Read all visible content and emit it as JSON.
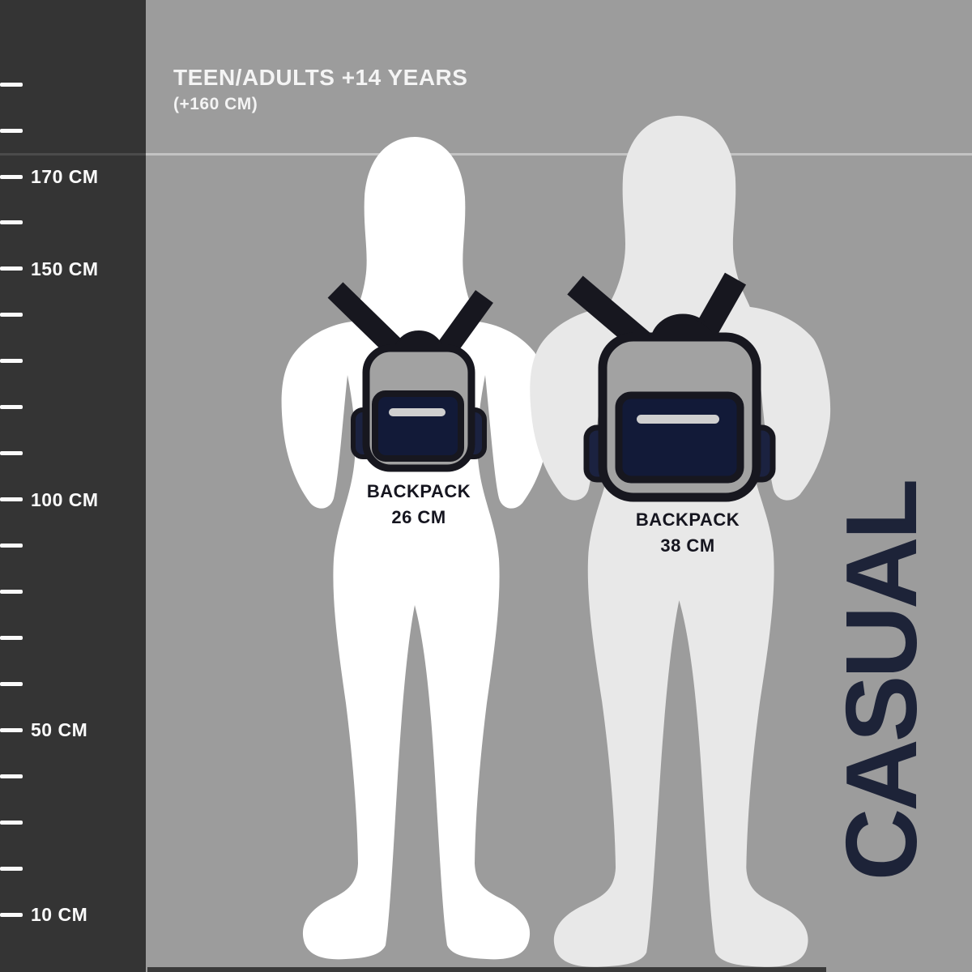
{
  "header": {
    "title": "TEEN/ADULTS +14 YEARS",
    "subtitle": "(+160 CM)"
  },
  "ruler": {
    "unit": "CM",
    "ticks": [
      {
        "cm": 190
      },
      {
        "cm": 180
      },
      {
        "cm": 170,
        "label": "170 CM"
      },
      {
        "cm": 160
      },
      {
        "cm": 150,
        "label": "150 CM"
      },
      {
        "cm": 140
      },
      {
        "cm": 130
      },
      {
        "cm": 120
      },
      {
        "cm": 110
      },
      {
        "cm": 100,
        "label": "100 CM"
      },
      {
        "cm": 90
      },
      {
        "cm": 80
      },
      {
        "cm": 70
      },
      {
        "cm": 60
      },
      {
        "cm": 50,
        "label": "50 CM"
      },
      {
        "cm": 40
      },
      {
        "cm": 30
      },
      {
        "cm": 20
      },
      {
        "cm": 10,
        "label": "10 CM"
      }
    ]
  },
  "backpacks": [
    {
      "label_line1": "BACKPACK",
      "label_line2": "26 CM",
      "size_cm": 26
    },
    {
      "label_line1": "BACKPACK",
      "label_line2": "38 CM",
      "size_cm": 38
    }
  ],
  "side_label": "CASUAL",
  "colors": {
    "background": "#9c9c9c",
    "ruler_panel": "#343434",
    "figure_left": "#ffffff",
    "figure_right": "#e8e8e8",
    "outline_black": "#17171f",
    "accent_navy": "#1b2240",
    "pocket_navy": "#121a38",
    "zipper_gray": "#cfcfcf",
    "casual_navy": "#1d2338"
  }
}
